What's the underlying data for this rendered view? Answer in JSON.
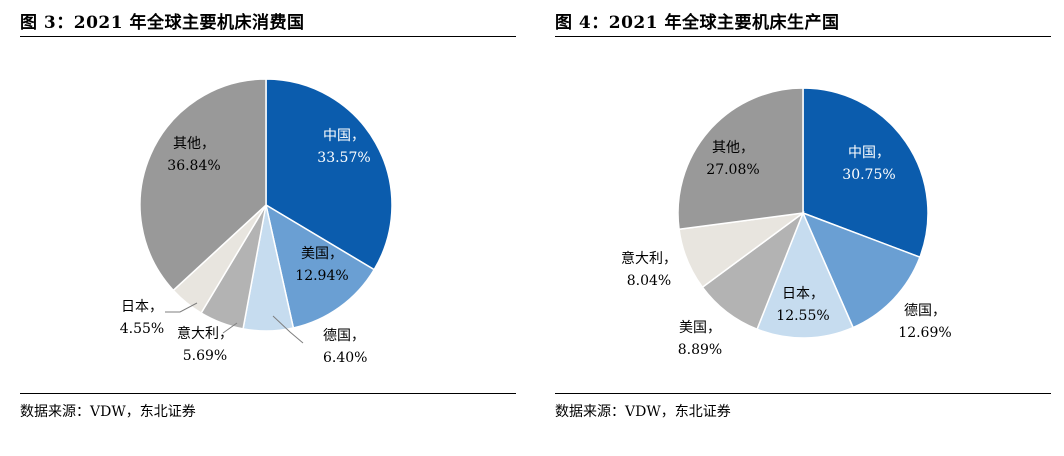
{
  "charts": [
    {
      "figure_label": "图 3：",
      "title": "2021 年全球主要机床消费国",
      "source": "数据来源：VDW，东北证券"
    },
    {
      "figure_label": "图 4：",
      "title": "2021 年全球主要机床生产国",
      "source": "数据来源：VDW，东北证券"
    }
  ],
  "chart_data": [
    {
      "type": "pie",
      "title": "2021 年全球主要机床消费国",
      "slices": [
        {
          "name": "中国",
          "value": 33.57,
          "label": "33.57%",
          "color": "#0b5cad"
        },
        {
          "name": "美国",
          "value": 12.94,
          "label": "12.94%",
          "color": "#6a9fd3"
        },
        {
          "name": "德国",
          "value": 6.4,
          "label": "6.40%",
          "color": "#c6dcef"
        },
        {
          "name": "意大利",
          "value": 5.69,
          "label": "5.69%",
          "color": "#b3b3b3"
        },
        {
          "name": "日本",
          "value": 4.55,
          "label": "4.55%",
          "color": "#e8e5df"
        },
        {
          "name": "其他",
          "value": 36.84,
          "label": "36.84%",
          "color": "#999999"
        }
      ],
      "start_angle_deg": 0,
      "direction": "clockwise"
    },
    {
      "type": "pie",
      "title": "2021 年全球主要机床生产国",
      "slices": [
        {
          "name": "中国",
          "value": 30.75,
          "label": "30.75%",
          "color": "#0b5cad"
        },
        {
          "name": "德国",
          "value": 12.69,
          "label": "12.69%",
          "color": "#6a9fd3"
        },
        {
          "name": "日本",
          "value": 12.55,
          "label": "12.55%",
          "color": "#c6dcef"
        },
        {
          "name": "美国",
          "value": 8.89,
          "label": "8.89%",
          "color": "#b3b3b3"
        },
        {
          "name": "意大利",
          "value": 8.04,
          "label": "8.04%",
          "color": "#e8e5df"
        },
        {
          "name": "其他",
          "value": 27.08,
          "label": "27.08%",
          "color": "#999999"
        }
      ],
      "start_angle_deg": 0,
      "direction": "clockwise"
    }
  ]
}
